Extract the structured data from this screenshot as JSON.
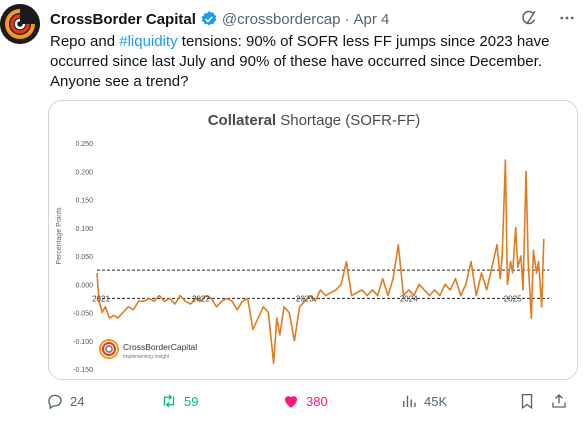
{
  "author": {
    "display_name": "CrossBorder Capital",
    "handle": "@crossbordercap",
    "separator": "·",
    "date": "Apr 4"
  },
  "tweet": {
    "text_before": "Repo and ",
    "hashtag": "#liquidity",
    "text_after": " tensions: 90% of SOFR less FF jumps since 2023 have occurred since last July and 90% of these have occurred since December. Anyone see a trend?"
  },
  "chart_data": {
    "type": "line",
    "title_bold": "Collateral",
    "title_rest": " Shortage (SOFR-FF)",
    "ylabel": "Percentage Points",
    "ylim": [
      -0.15,
      0.25
    ],
    "y_ticks": [
      "0.250",
      "0.200",
      "0.150",
      "0.100",
      "0.050",
      "0.000",
      "-0.050",
      "-0.100",
      "-0.150"
    ],
    "x_ticks": [
      "2021",
      "2022",
      "2023",
      "2024",
      "2025"
    ],
    "xlim": [
      2021.0,
      2025.35
    ],
    "reference_lines": [
      0.025,
      -0.025
    ],
    "series": [
      {
        "color": "#e07b1f",
        "x": [
          2021.0,
          2021.02,
          2021.05,
          2021.08,
          2021.12,
          2021.16,
          2021.2,
          2021.25,
          2021.3,
          2021.35,
          2021.4,
          2021.45,
          2021.5,
          2021.55,
          2021.6,
          2021.65,
          2021.7,
          2021.75,
          2021.8,
          2021.85,
          2021.9,
          2021.95,
          2022.0,
          2022.05,
          2022.1,
          2022.15,
          2022.2,
          2022.25,
          2022.3,
          2022.35,
          2022.4,
          2022.45,
          2022.5,
          2022.55,
          2022.6,
          2022.65,
          2022.7,
          2022.73,
          2022.76,
          2022.8,
          2022.85,
          2022.9,
          2022.95,
          2023.0,
          2023.05,
          2023.1,
          2023.15,
          2023.2,
          2023.25,
          2023.3,
          2023.35,
          2023.4,
          2023.45,
          2023.5,
          2023.55,
          2023.6,
          2023.65,
          2023.7,
          2023.75,
          2023.8,
          2023.85,
          2023.9,
          2023.95,
          2024.0,
          2024.05,
          2024.1,
          2024.15,
          2024.2,
          2024.25,
          2024.3,
          2024.35,
          2024.4,
          2024.45,
          2024.5,
          2024.55,
          2024.6,
          2024.65,
          2024.7,
          2024.75,
          2024.8,
          2024.85,
          2024.88,
          2024.9,
          2024.93,
          2024.95,
          2024.98,
          2025.0,
          2025.03,
          2025.05,
          2025.08,
          2025.1,
          2025.13,
          2025.15,
          2025.18,
          2025.2,
          2025.23,
          2025.25,
          2025.28,
          2025.3
        ],
        "y": [
          0.02,
          -0.03,
          -0.05,
          -0.04,
          -0.06,
          -0.055,
          -0.06,
          -0.05,
          -0.04,
          -0.045,
          -0.03,
          -0.03,
          -0.025,
          -0.03,
          -0.02,
          -0.03,
          -0.025,
          -0.035,
          -0.02,
          -0.03,
          -0.035,
          -0.025,
          -0.03,
          -0.02,
          -0.025,
          -0.04,
          -0.03,
          -0.025,
          -0.03,
          -0.045,
          -0.03,
          -0.025,
          -0.08,
          -0.06,
          -0.04,
          -0.05,
          -0.14,
          -0.06,
          -0.09,
          -0.04,
          -0.05,
          -0.1,
          -0.04,
          -0.03,
          -0.02,
          -0.03,
          -0.01,
          -0.02,
          -0.015,
          -0.01,
          0.0,
          0.04,
          -0.02,
          -0.015,
          -0.01,
          -0.02,
          -0.01,
          -0.02,
          0.01,
          -0.02,
          0.01,
          0.07,
          -0.02,
          -0.01,
          -0.02,
          0.0,
          -0.01,
          -0.02,
          -0.01,
          -0.02,
          0.0,
          -0.01,
          0.01,
          -0.02,
          0.0,
          0.04,
          -0.02,
          0.02,
          -0.01,
          0.03,
          0.07,
          0.01,
          0.05,
          0.22,
          0.0,
          0.04,
          0.02,
          0.1,
          0.03,
          0.05,
          -0.01,
          0.2,
          0.04,
          -0.06,
          0.06,
          0.02,
          0.04,
          -0.04,
          0.08
        ]
      }
    ],
    "logo": {
      "name": "CrossBorderCapital",
      "tagline": "Implementing Insight"
    }
  },
  "actions": {
    "replies": "24",
    "retweets": "59",
    "likes": "380",
    "views": "45K"
  },
  "colors": {
    "accent": "#1d9bf0",
    "retweet": "#00ba7c",
    "like": "#f91880",
    "muted": "#536471"
  }
}
